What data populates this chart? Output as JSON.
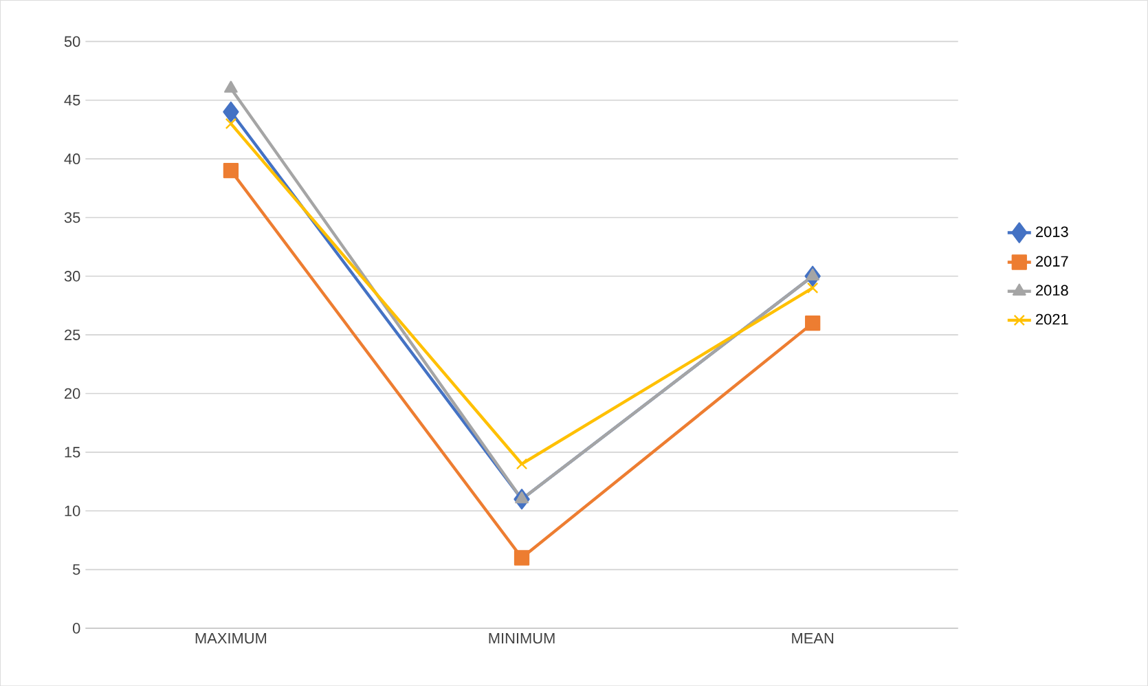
{
  "chart_data": {
    "type": "line",
    "categories": [
      "MAXIMUM",
      "MINIMUM",
      "MEAN"
    ],
    "ylim": [
      0,
      50
    ],
    "yticks": [
      0,
      5,
      10,
      15,
      20,
      25,
      30,
      35,
      40,
      45,
      50
    ],
    "grid": "y",
    "legend": "right",
    "series": [
      {
        "name": "2013",
        "color": "#4472c4",
        "marker": "diamond",
        "values": [
          44,
          11,
          30
        ]
      },
      {
        "name": "2017",
        "color": "#ed7d31",
        "marker": "square",
        "values": [
          39,
          6,
          26
        ]
      },
      {
        "name": "2018",
        "color": "#a5a5a5",
        "marker": "triangle",
        "values": [
          46,
          11,
          30
        ]
      },
      {
        "name": "2021",
        "color": "#ffc000",
        "marker": "cross",
        "values": [
          43,
          14,
          29
        ]
      }
    ]
  }
}
